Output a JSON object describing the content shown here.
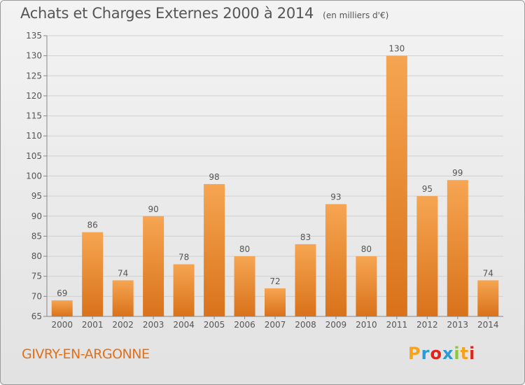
{
  "title": "Achats et Charges Externes 2000 à 2014",
  "unit": "(en milliers d'€)",
  "commune": "GIVRY-EN-ARGONNE",
  "logo": {
    "letters": [
      "P",
      "r",
      "o",
      "x",
      "i",
      "t",
      "i"
    ],
    "colors": [
      "#f7a21b",
      "#2a9bd6",
      "#e2231a",
      "#2a9bd6",
      "#8cc63f",
      "#f7a21b",
      "#e2231a"
    ]
  },
  "colors": {
    "bar": "#ee8f2e",
    "bar_dark": "#d9731a",
    "text": "#555555",
    "commune": "#e0701a",
    "grid": "#d0d0d0"
  },
  "chart_data": {
    "type": "bar",
    "categories": [
      "2000",
      "2001",
      "2002",
      "2003",
      "2004",
      "2005",
      "2006",
      "2007",
      "2008",
      "2009",
      "2010",
      "2011",
      "2012",
      "2013",
      "2014"
    ],
    "values": [
      69,
      86,
      74,
      90,
      78,
      98,
      80,
      72,
      83,
      93,
      80,
      130,
      95,
      99,
      74
    ],
    "ylim": [
      65,
      135
    ],
    "yticks": [
      65,
      70,
      75,
      80,
      85,
      90,
      95,
      100,
      105,
      110,
      115,
      120,
      125,
      130,
      135
    ],
    "grid": true,
    "legend": "none"
  }
}
